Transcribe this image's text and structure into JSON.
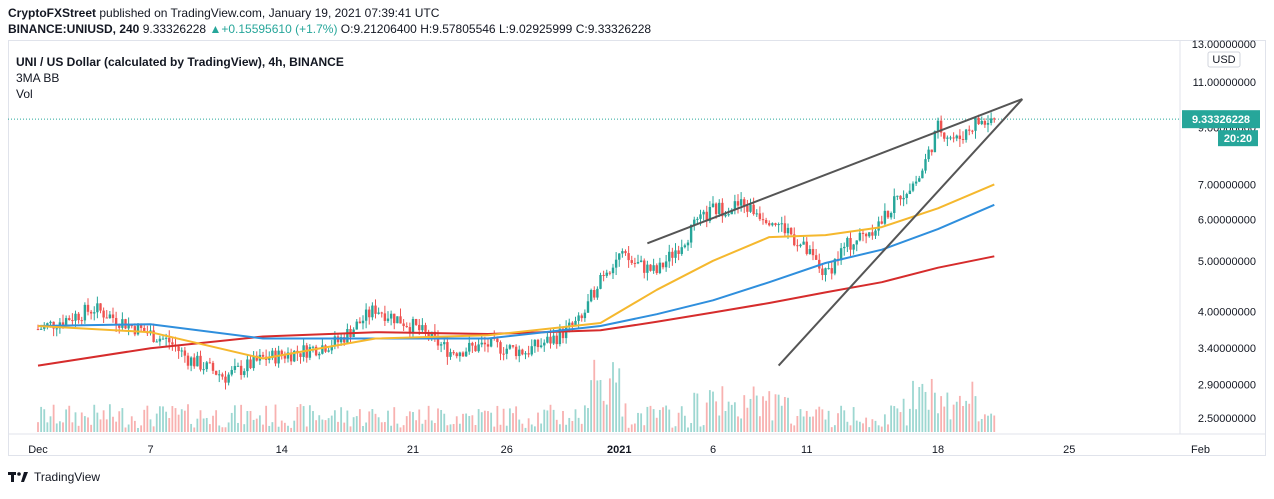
{
  "header": {
    "publisher": "CryptoFXStreet",
    "published_text": "published on TradingView.com, January 19, 2021 07:39:41 UTC"
  },
  "ohlc": {
    "symbol": "BINANCE:UNIUSD, 240",
    "last": "9.33326228",
    "change": "+0.15595610 (+1.7%)",
    "open": "O:9.21206400",
    "high": "H:9.57805546",
    "low": "L:9.02925999",
    "close": "C:9.33326228"
  },
  "legend": {
    "title": "UNI / US Dollar (calculated by TradingView), 4h, BINANCE",
    "indicator": "3MA BB",
    "volume": "Vol"
  },
  "footer": {
    "brand": "TradingView"
  },
  "colors": {
    "up": "#26a69a",
    "down": "#ef5350",
    "ma_short": "#f5b82e",
    "ma_mid": "#2f8fdd",
    "ma_long": "#d62c2c",
    "trendline": "#555555",
    "price_tag": "#26a69a"
  },
  "chart_data": {
    "type": "candlestick",
    "scale": "log",
    "currency": "USD",
    "price_ticks": [
      "13.00000000",
      "11.00000000",
      "9.00000000",
      "7.00000000",
      "6.00000000",
      "5.00000000",
      "4.00000000",
      "3.40000000",
      "2.90000000",
      "2.50000000"
    ],
    "price_tick_values": [
      13.0,
      11.0,
      9.0,
      7.0,
      6.0,
      5.0,
      4.0,
      3.4,
      2.9,
      2.5
    ],
    "date_ticks": [
      {
        "label": "Dec",
        "bold": false
      },
      {
        "label": "7",
        "bold": false
      },
      {
        "label": "14",
        "bold": false
      },
      {
        "label": "21",
        "bold": false
      },
      {
        "label": "26",
        "bold": false
      },
      {
        "label": "2021",
        "bold": true
      },
      {
        "label": "6",
        "bold": false
      },
      {
        "label": "11",
        "bold": false
      },
      {
        "label": "18",
        "bold": false
      },
      {
        "label": "25",
        "bold": false
      },
      {
        "label": "Feb",
        "bold": false
      }
    ],
    "date_tick_days": [
      0,
      6,
      13,
      20,
      25,
      31,
      36,
      41,
      48,
      55,
      62
    ],
    "last_price_tag": "9.33326228",
    "countdown_tag": "20:20",
    "last_price_value": 9.333,
    "price_path": [
      [
        0,
        3.7
      ],
      [
        3,
        4.05
      ],
      [
        5,
        3.75
      ],
      [
        7,
        3.5
      ],
      [
        8,
        3.25
      ],
      [
        10,
        3.0
      ],
      [
        12,
        3.25
      ],
      [
        14,
        3.35
      ],
      [
        16,
        3.5
      ],
      [
        18,
        4.05
      ],
      [
        20,
        3.75
      ],
      [
        22,
        3.35
      ],
      [
        24,
        3.45
      ],
      [
        26,
        3.35
      ],
      [
        27.5,
        3.55
      ],
      [
        29,
        3.85
      ],
      [
        30,
        4.7
      ],
      [
        31,
        5.1
      ],
      [
        33,
        4.75
      ],
      [
        35,
        5.8
      ],
      [
        36,
        6.25
      ],
      [
        37.5,
        6.4
      ],
      [
        39,
        6.05
      ],
      [
        40,
        5.7
      ],
      [
        41,
        5.2
      ],
      [
        42,
        4.7
      ],
      [
        43,
        5.3
      ],
      [
        44,
        5.6
      ],
      [
        45,
        5.95
      ],
      [
        46,
        6.7
      ],
      [
        47,
        7.2
      ],
      [
        48,
        9.0
      ],
      [
        49,
        8.5
      ],
      [
        50,
        9.2
      ],
      [
        51,
        9.33
      ]
    ],
    "ma_short": [
      [
        0,
        3.75
      ],
      [
        6,
        3.65
      ],
      [
        12,
        3.25
      ],
      [
        18,
        3.55
      ],
      [
        24,
        3.6
      ],
      [
        30,
        3.8
      ],
      [
        33,
        4.4
      ],
      [
        36,
        5.0
      ],
      [
        39,
        5.55
      ],
      [
        42,
        5.6
      ],
      [
        45,
        5.8
      ],
      [
        48,
        6.3
      ],
      [
        51,
        7.0
      ]
    ],
    "ma_mid": [
      [
        0,
        3.75
      ],
      [
        6,
        3.78
      ],
      [
        12,
        3.55
      ],
      [
        18,
        3.55
      ],
      [
        24,
        3.55
      ],
      [
        30,
        3.75
      ],
      [
        33,
        3.95
      ],
      [
        36,
        4.2
      ],
      [
        39,
        4.55
      ],
      [
        42,
        4.95
      ],
      [
        45,
        5.25
      ],
      [
        48,
        5.75
      ],
      [
        51,
        6.4
      ]
    ],
    "ma_long": [
      [
        0,
        3.15
      ],
      [
        6,
        3.4
      ],
      [
        12,
        3.58
      ],
      [
        18,
        3.65
      ],
      [
        24,
        3.62
      ],
      [
        30,
        3.68
      ],
      [
        33,
        3.82
      ],
      [
        36,
        3.98
      ],
      [
        39,
        4.15
      ],
      [
        42,
        4.35
      ],
      [
        45,
        4.55
      ],
      [
        48,
        4.85
      ],
      [
        51,
        5.1
      ]
    ],
    "wedge_upper": [
      [
        32.5,
        5.4
      ],
      [
        52.5,
        10.2
      ]
    ],
    "wedge_lower": [
      [
        39.5,
        3.15
      ],
      [
        52.5,
        10.2
      ]
    ]
  }
}
